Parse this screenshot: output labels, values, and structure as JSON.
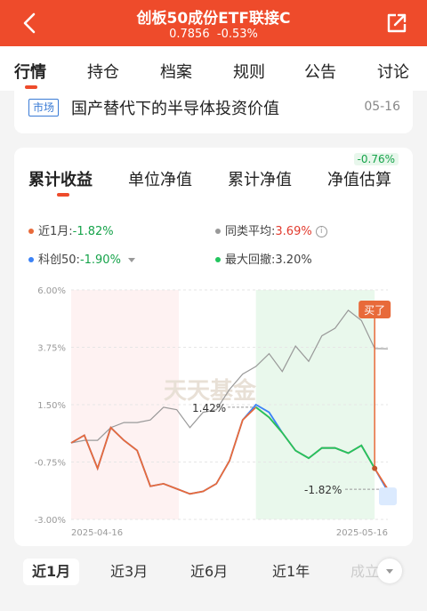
{
  "header": {
    "title": "创板50成份ETF联接C",
    "nav_price": "0.7856",
    "change": "-0.53%"
  },
  "main_tabs": [
    "行情",
    "持仓",
    "档案",
    "规则",
    "公告",
    "讨论"
  ],
  "news": {
    "tag": "市场",
    "text": "国产替代下的半导体投资价值",
    "date": "05-16"
  },
  "sub_tabs": [
    "累计收益",
    "单位净值",
    "累计净值",
    "净值估算"
  ],
  "estimate_badge": "-0.76%",
  "legend": {
    "fund_label": "近1月:",
    "fund_value": "-1.82%",
    "peer_label": "同类平均:",
    "peer_value": "3.69%",
    "index_label": "科创50:",
    "index_value": "-1.90%",
    "drawdown_label": "最大回撤:",
    "drawdown_value": "3.20%"
  },
  "colors": {
    "brand": "#ee4b2b",
    "fund_line": "#e86a3a",
    "peer_line": "#999999",
    "index_line": "#3b82f6",
    "drawdown": "#22c55e"
  },
  "chart_data": {
    "type": "line",
    "ylim": [
      -3.0,
      6.0
    ],
    "y_ticks": [
      "6.00%",
      "3.75%",
      "1.50%",
      "-0.75%",
      "-3.00%"
    ],
    "x_ticks": [
      "2025-04-16",
      "2025-05-16"
    ],
    "watermark": "天天基金",
    "series": [
      {
        "name": "近1月",
        "values": [
          0.0,
          0.3,
          -1.0,
          0.6,
          0.1,
          -0.3,
          -1.7,
          -1.6,
          -1.8,
          -2.0,
          -1.9,
          -1.6,
          -0.7,
          0.9,
          1.4,
          1.0,
          0.4,
          -0.3,
          -0.6,
          -0.2,
          -0.2,
          -0.4,
          -0.1,
          -1.0,
          -1.82
        ]
      },
      {
        "name": "同类平均",
        "values": [
          0.0,
          0.1,
          0.1,
          0.6,
          0.8,
          0.8,
          0.9,
          1.4,
          1.3,
          0.6,
          1.2,
          1.3,
          2.1,
          2.7,
          3.0,
          3.5,
          2.8,
          3.8,
          3.2,
          4.2,
          4.5,
          5.2,
          4.8,
          3.7,
          3.69
        ]
      },
      {
        "name": "科创50",
        "values": [
          0.0,
          0.3,
          -1.0,
          0.6,
          0.1,
          -0.3,
          -1.7,
          -1.6,
          -1.8,
          -2.0,
          -1.9,
          -1.6,
          -0.7,
          0.9,
          1.5,
          1.2,
          0.4,
          -0.3,
          -0.6,
          -0.2,
          -0.2,
          -0.4,
          -0.1,
          -1.0,
          -1.9
        ]
      }
    ],
    "annotations": {
      "max_label": "1.42%",
      "end_label": "-1.82%",
      "buy_label": "买了"
    }
  },
  "range_tabs": [
    "近1月",
    "近3月",
    "近6月",
    "近1年",
    "成立"
  ]
}
